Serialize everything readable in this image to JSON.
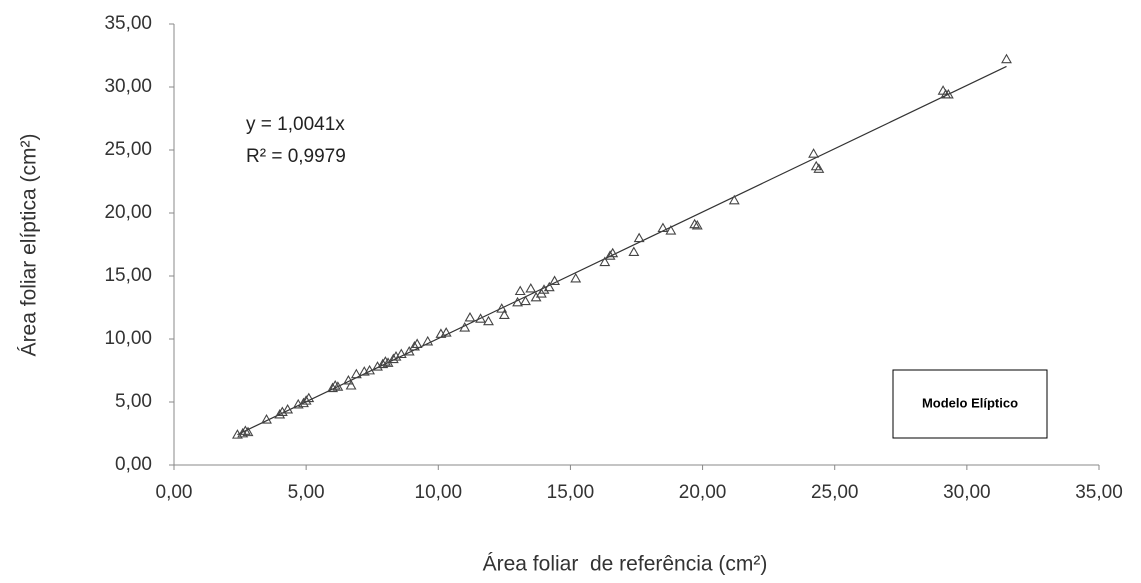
{
  "chart_data": {
    "type": "scatter",
    "x_label": "Área foliar  de referência (cm²)",
    "y_label": "Área foliar elíptica (cm²)",
    "annotations": [
      "y = 1,0041x",
      "R² = 0,9979"
    ],
    "trendline_slope": 1.0041,
    "xlim": [
      0,
      35
    ],
    "ylim": [
      0,
      35
    ],
    "xticks": [
      {
        "value": 0,
        "label": "0,00"
      },
      {
        "value": 5,
        "label": "5,00"
      },
      {
        "value": 10,
        "label": "10,00"
      },
      {
        "value": 15,
        "label": "15,00"
      },
      {
        "value": 20,
        "label": "20,00"
      },
      {
        "value": 25,
        "label": "25,00"
      },
      {
        "value": 30,
        "label": "30,00"
      },
      {
        "value": 35,
        "label": "35,00"
      }
    ],
    "yticks": [
      {
        "value": 0,
        "label": "0,00"
      },
      {
        "value": 5,
        "label": "5,00"
      },
      {
        "value": 10,
        "label": "10,00"
      },
      {
        "value": 15,
        "label": "15,00"
      },
      {
        "value": 20,
        "label": "20,00"
      },
      {
        "value": 25,
        "label": "25,00"
      },
      {
        "value": 30,
        "label": "30,00"
      },
      {
        "value": 35,
        "label": "35,00"
      }
    ],
    "series": [
      {
        "name": "Modelo Elíptico",
        "color": "#444444",
        "x": [
          2.4,
          2.6,
          2.7,
          2.8,
          3.5,
          4.0,
          4.1,
          4.3,
          4.7,
          4.9,
          5.0,
          5.1,
          6.0,
          6.1,
          6.2,
          6.6,
          6.7,
          6.9,
          7.2,
          7.4,
          7.7,
          7.9,
          8.0,
          8.1,
          8.3,
          8.4,
          8.6,
          8.9,
          9.1,
          9.2,
          9.6,
          10.1,
          10.3,
          11.0,
          11.2,
          11.6,
          11.9,
          12.4,
          12.5,
          13.0,
          13.1,
          13.3,
          13.5,
          13.7,
          13.9,
          14.0,
          14.2,
          14.4,
          15.2,
          16.3,
          16.5,
          16.6,
          17.4,
          17.6,
          18.5,
          18.8,
          19.7,
          19.8,
          21.2,
          24.2,
          24.3,
          24.4,
          29.1,
          29.2,
          29.3,
          31.5
        ],
        "values": [
          2.4,
          2.5,
          2.7,
          2.6,
          3.6,
          4.0,
          4.2,
          4.4,
          4.8,
          4.9,
          5.1,
          5.3,
          6.1,
          6.3,
          6.2,
          6.7,
          6.3,
          7.2,
          7.4,
          7.5,
          7.8,
          8.0,
          8.2,
          8.1,
          8.4,
          8.6,
          8.8,
          9.0,
          9.4,
          9.6,
          9.8,
          10.4,
          10.5,
          10.9,
          11.7,
          11.6,
          11.4,
          12.4,
          11.9,
          12.9,
          13.8,
          13.0,
          14.0,
          13.3,
          13.6,
          13.9,
          14.1,
          14.6,
          14.8,
          16.1,
          16.6,
          16.8,
          16.9,
          18.0,
          18.8,
          18.6,
          19.1,
          19.0,
          21.0,
          24.7,
          23.7,
          23.5,
          29.7,
          29.4,
          29.4,
          32.2
        ]
      }
    ]
  }
}
